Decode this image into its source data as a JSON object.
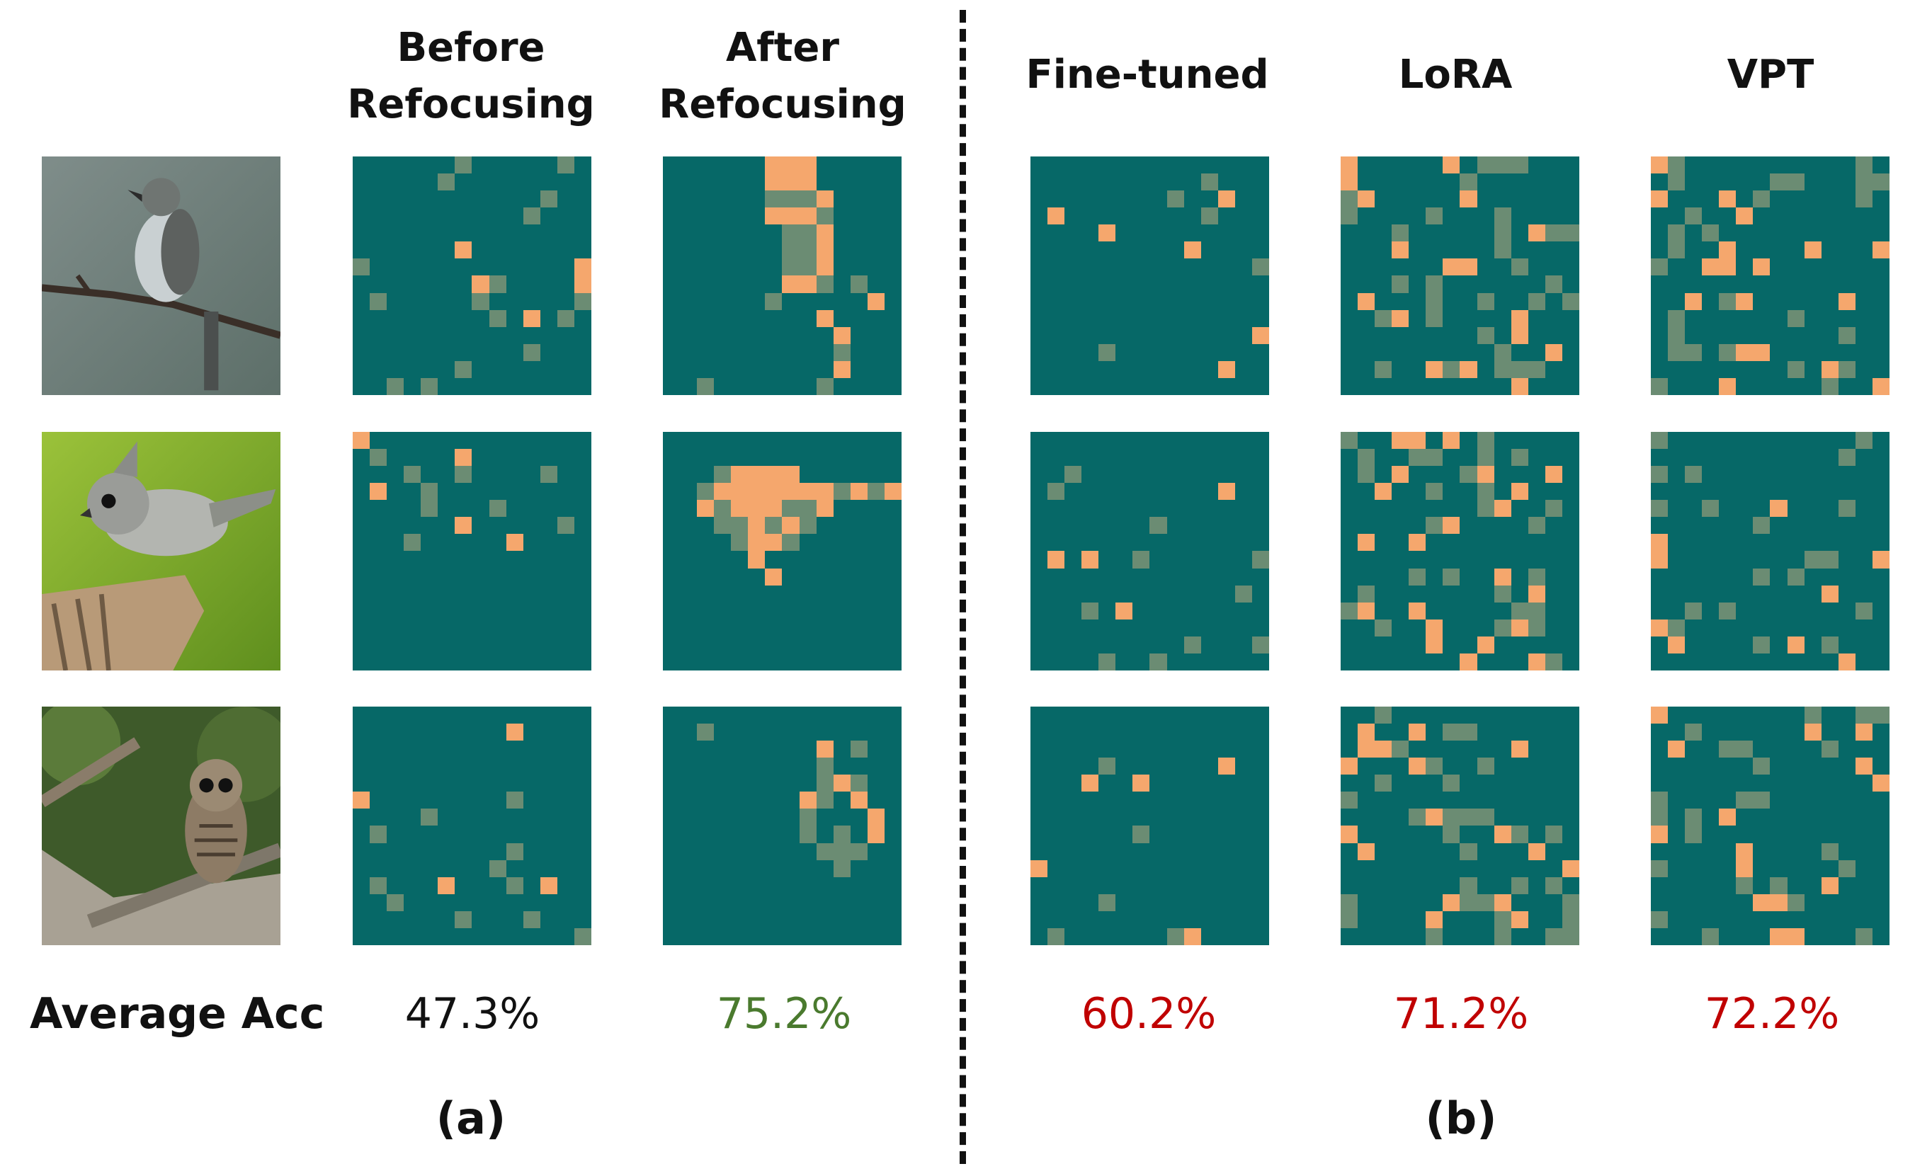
{
  "headers": {
    "before": [
      "Before",
      "Refocusing"
    ],
    "after": [
      "After",
      "Refocusing"
    ],
    "finetuned": "Fine-tuned",
    "lora": "LoRA",
    "vpt": "VPT"
  },
  "rows": [
    {
      "image": "bird-flycatcher"
    },
    {
      "image": "bird-titmouse"
    },
    {
      "image": "barred-owl"
    }
  ],
  "accuracy": {
    "label": "Average Acc",
    "before": "47.3%",
    "after": "75.2%",
    "finetuned": "60.2%",
    "lora": "71.2%",
    "vpt": "72.2%"
  },
  "panels": {
    "a": "(a)",
    "b": "(b)"
  },
  "colors": {
    "map_background": "#066867",
    "hot": "#f5a76d",
    "mid": "#6b8c73",
    "acc_neutral": "#111111",
    "acc_improved": "#4a7a2e",
    "acc_baseline": "#c00000"
  }
}
